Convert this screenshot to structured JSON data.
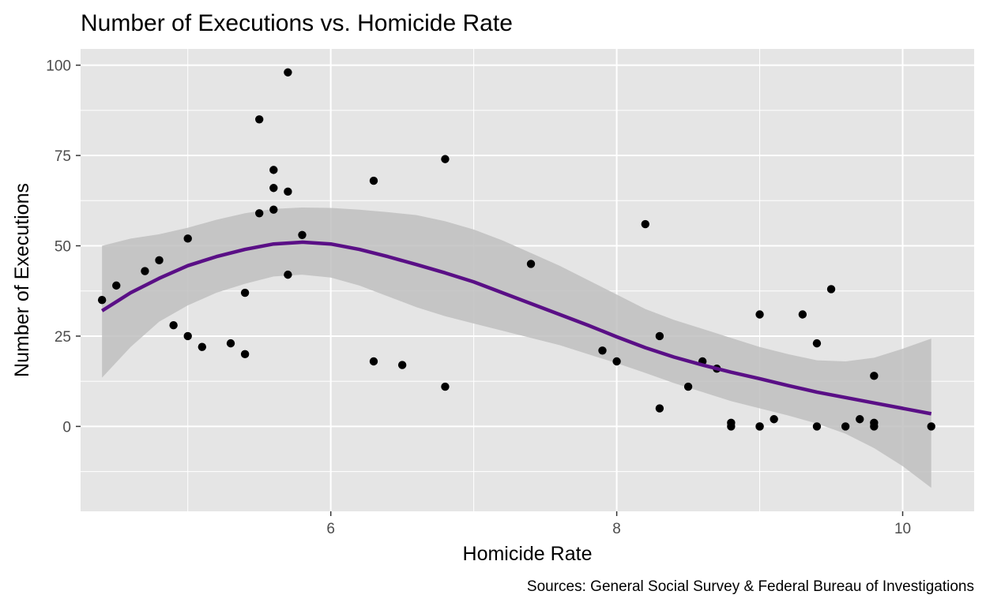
{
  "chart_data": {
    "type": "scatter",
    "title": "Number of Executions vs. Homicide Rate",
    "xlabel": "Homicide Rate",
    "ylabel": "Number of Executions",
    "caption": "Sources: General Social Survey & Federal Bureau of Investigations",
    "xlim": [
      4.25,
      10.5
    ],
    "ylim": [
      -23.5,
      104.5
    ],
    "x_ticks": [
      6,
      8,
      10
    ],
    "y_ticks": [
      0,
      25,
      50,
      75,
      100
    ],
    "grid": true,
    "panel_color": "#e5e5e5",
    "grid_color": "#ffffff",
    "point_color": "#000000",
    "smooth_color": "#5a0f86",
    "ribbon_color": "#bfbfbf",
    "points": [
      {
        "x": 4.4,
        "y": 35
      },
      {
        "x": 4.5,
        "y": 39
      },
      {
        "x": 4.7,
        "y": 43
      },
      {
        "x": 4.8,
        "y": 46
      },
      {
        "x": 4.9,
        "y": 28
      },
      {
        "x": 5.0,
        "y": 52
      },
      {
        "x": 5.0,
        "y": 25
      },
      {
        "x": 5.1,
        "y": 22
      },
      {
        "x": 5.3,
        "y": 23
      },
      {
        "x": 5.4,
        "y": 37
      },
      {
        "x": 5.4,
        "y": 20
      },
      {
        "x": 5.5,
        "y": 85
      },
      {
        "x": 5.5,
        "y": 59
      },
      {
        "x": 5.6,
        "y": 71
      },
      {
        "x": 5.6,
        "y": 66
      },
      {
        "x": 5.6,
        "y": 60
      },
      {
        "x": 5.7,
        "y": 98
      },
      {
        "x": 5.7,
        "y": 65
      },
      {
        "x": 5.7,
        "y": 42
      },
      {
        "x": 5.8,
        "y": 53
      },
      {
        "x": 6.3,
        "y": 68
      },
      {
        "x": 6.3,
        "y": 18
      },
      {
        "x": 6.5,
        "y": 17
      },
      {
        "x": 6.8,
        "y": 74
      },
      {
        "x": 6.8,
        "y": 11
      },
      {
        "x": 7.4,
        "y": 45
      },
      {
        "x": 7.9,
        "y": 21
      },
      {
        "x": 8.0,
        "y": 18
      },
      {
        "x": 8.2,
        "y": 56
      },
      {
        "x": 8.3,
        "y": 25
      },
      {
        "x": 8.3,
        "y": 5
      },
      {
        "x": 8.5,
        "y": 11
      },
      {
        "x": 8.6,
        "y": 18
      },
      {
        "x": 8.7,
        "y": 16
      },
      {
        "x": 8.8,
        "y": 1
      },
      {
        "x": 8.8,
        "y": 0
      },
      {
        "x": 9.0,
        "y": 31
      },
      {
        "x": 9.0,
        "y": 0
      },
      {
        "x": 9.0,
        "y": 0
      },
      {
        "x": 9.1,
        "y": 2
      },
      {
        "x": 9.3,
        "y": 31
      },
      {
        "x": 9.4,
        "y": 23
      },
      {
        "x": 9.4,
        "y": 0
      },
      {
        "x": 9.5,
        "y": 38
      },
      {
        "x": 9.6,
        "y": 0
      },
      {
        "x": 9.7,
        "y": 2
      },
      {
        "x": 9.8,
        "y": 14
      },
      {
        "x": 9.8,
        "y": 1
      },
      {
        "x": 9.8,
        "y": 0
      },
      {
        "x": 10.2,
        "y": 0
      }
    ],
    "smooth": {
      "x": [
        4.4,
        4.6,
        4.8,
        5.0,
        5.2,
        5.4,
        5.6,
        5.8,
        6.0,
        6.2,
        6.4,
        6.6,
        6.8,
        7.0,
        7.2,
        7.4,
        7.6,
        7.8,
        8.0,
        8.2,
        8.4,
        8.6,
        8.8,
        9.0,
        9.2,
        9.4,
        9.6,
        9.8,
        10.0,
        10.2
      ],
      "y": [
        32,
        37,
        41,
        44.5,
        47,
        49,
        50.5,
        51,
        50.5,
        49,
        47,
        44.8,
        42.5,
        40,
        37,
        34,
        31,
        28,
        24.8,
        21.8,
        19.2,
        17,
        15,
        13.2,
        11.3,
        9.5,
        8,
        6.5,
        5,
        3.5
      ],
      "lower": [
        13.5,
        22,
        29,
        33.5,
        37,
        39.5,
        41.5,
        42,
        41.2,
        39,
        36,
        33,
        30.5,
        28.5,
        26.5,
        24.5,
        22.5,
        20,
        17.5,
        14.8,
        12,
        9.5,
        7,
        5,
        3,
        0.8,
        -2,
        -6,
        -11,
        -17
      ],
      "upper": [
        50,
        52,
        53.2,
        55,
        57.2,
        59,
        60.2,
        60.6,
        60.5,
        60,
        59.3,
        58.5,
        56.8,
        54.5,
        51.5,
        48,
        44.5,
        40.5,
        36.5,
        32.5,
        29.5,
        27,
        24.5,
        22,
        20,
        18.3,
        18,
        19,
        21.5,
        24.3
      ]
    }
  }
}
